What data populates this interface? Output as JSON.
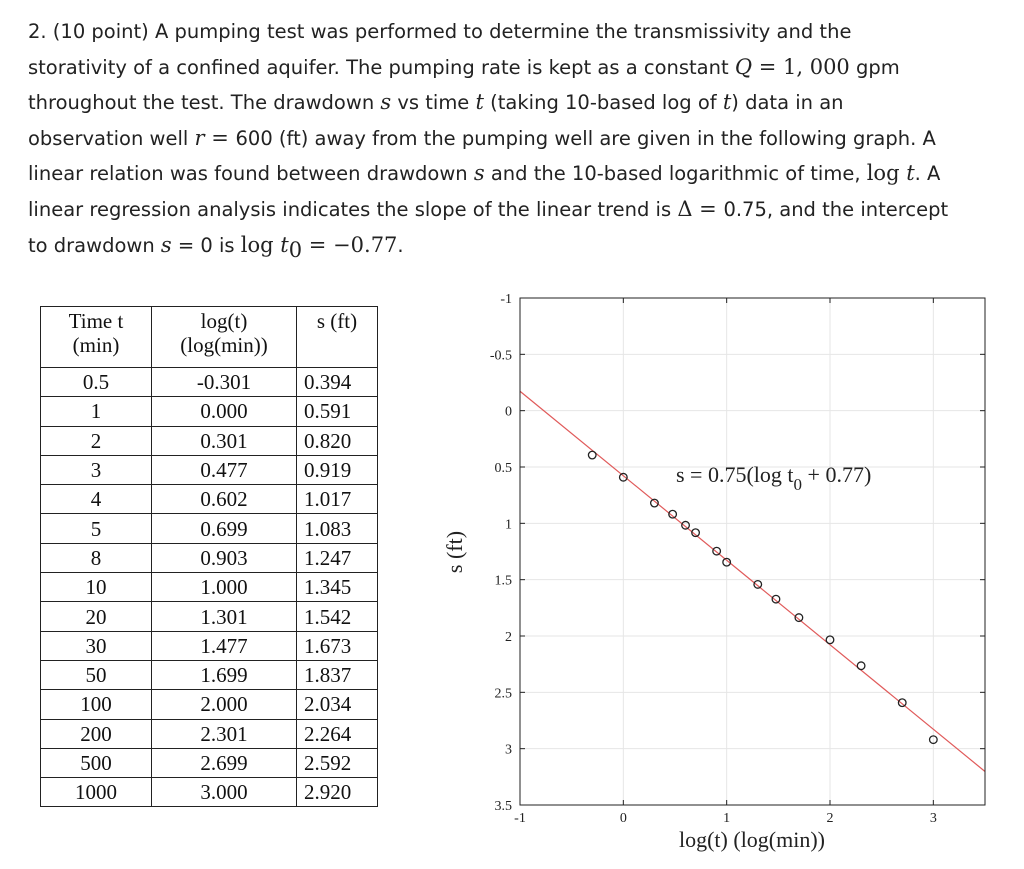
{
  "problem": {
    "p1": "2. (10 point) A pumping test was performed to determine the transmissivity and the",
    "p2a": "storativity of a confined aquifer. The pumping rate is kept as a constant ",
    "p2_Q": "Q",
    "p2_eq": " = 1, 000",
    "p2_unit": " gpm",
    "p3a": "throughout the test. The drawdown ",
    "p3_s": "s",
    "p3b": " vs time ",
    "p3_t": "t",
    "p3c": " (taking 10-based log of ",
    "p3_t2": "t",
    "p3d": ") data in an",
    "p4a": "observation well ",
    "p4_r": "r",
    "p4_eq": " = ",
    "p4b": "600 (ft) away from the pumping well are given in the following graph. A",
    "p5a": "linear relation was found between drawdown ",
    "p5_s": "s",
    "p5b": " and the 10-based logarithmic of time, ",
    "p5_log": "log ",
    "p5_t": "t",
    "p5c": ". A",
    "p6a": "linear regression analysis indicates the slope of the linear trend is ",
    "p6_delta": "Δ = ",
    "p6b": "0.75, and the intercept",
    "p7a": "to drawdown ",
    "p7_s": "s",
    "p7b": " = 0 is ",
    "p7_log": "log ",
    "p7_t": "t",
    "p7_sub": "0",
    "p7_eq": " = −0.77",
    "p7c": "."
  },
  "table": {
    "headers": {
      "h1a": "Time t",
      "h1b": "(min)",
      "h2a": "log(t)",
      "h2b": "(log(min))",
      "h3a": "s (ft)"
    },
    "rows": [
      [
        "0.5",
        "-0.301",
        "0.394"
      ],
      [
        "1",
        "0.000",
        "0.591"
      ],
      [
        "2",
        "0.301",
        "0.820"
      ],
      [
        "3",
        "0.477",
        "0.919"
      ],
      [
        "4",
        "0.602",
        "1.017"
      ],
      [
        "5",
        "0.699",
        "1.083"
      ],
      [
        "8",
        "0.903",
        "1.247"
      ],
      [
        "10",
        "1.000",
        "1.345"
      ],
      [
        "20",
        "1.301",
        "1.542"
      ],
      [
        "30",
        "1.477",
        "1.673"
      ],
      [
        "50",
        "1.699",
        "1.837"
      ],
      [
        "100",
        "2.000",
        "2.034"
      ],
      [
        "200",
        "2.301",
        "2.264"
      ],
      [
        "500",
        "2.699",
        "2.592"
      ],
      [
        "1000",
        "3.000",
        "2.920"
      ]
    ]
  },
  "chart_data": {
    "type": "scatter",
    "xlabel": "log(t) (log(min))",
    "ylabel": "s (ft)",
    "xlim": [
      -1,
      3.5
    ],
    "ylim": [
      -1,
      3.5
    ],
    "y_inverted": true,
    "grid": true,
    "x_ticks": [
      "-1",
      "0",
      "1",
      "2",
      "3"
    ],
    "y_ticks": [
      "-1",
      "-0.5",
      "0",
      "0.5",
      "1",
      "1.5",
      "2",
      "2.5",
      "3",
      "3.5"
    ],
    "points": {
      "x": [
        -0.301,
        0.0,
        0.301,
        0.477,
        0.602,
        0.699,
        0.903,
        1.0,
        1.301,
        1.477,
        1.699,
        2.0,
        2.301,
        2.699,
        3.0
      ],
      "y": [
        0.394,
        0.591,
        0.82,
        0.919,
        1.017,
        1.083,
        1.247,
        1.345,
        1.542,
        1.673,
        1.837,
        2.034,
        2.264,
        2.592,
        2.92
      ]
    },
    "trendline": {
      "slope": 0.75,
      "intercept_x": -0.77,
      "color": "#e05a5a"
    },
    "annotation": {
      "part1": "s = 0.75(log t",
      "sub": "0",
      "part2": " + 0.77)"
    },
    "marker_color": "#222222"
  }
}
